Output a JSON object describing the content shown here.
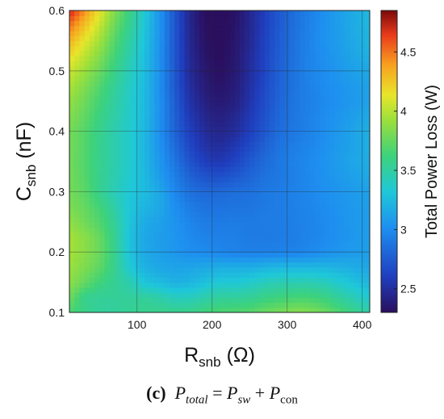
{
  "chart_data": {
    "type": "heatmap",
    "title": "",
    "xlabel": {
      "main": "R",
      "sub": "snb",
      "unit": "(Ω)"
    },
    "ylabel": {
      "main": "C",
      "sub": "snb",
      "unit": "(nF)"
    },
    "xlim": [
      10,
      410
    ],
    "ylim": [
      0.1,
      0.6
    ],
    "xticks": [
      "100",
      "200",
      "300",
      "400"
    ],
    "yticks": [
      "0.1",
      "0.2",
      "0.3",
      "0.4",
      "0.5",
      "0.6"
    ],
    "grid": true,
    "colorbar": {
      "label": "Total Power Loss (W)",
      "range": [
        2.3,
        4.85
      ],
      "ticks": [
        "2.5",
        "3",
        "3.5",
        "4",
        "4.5"
      ],
      "colormap": "jet"
    },
    "x": [
      10,
      30,
      50,
      70,
      90,
      110,
      130,
      150,
      170,
      190,
      210,
      230,
      250,
      270,
      290,
      310,
      330,
      350,
      370,
      390,
      410
    ],
    "y": [
      0.1,
      0.125,
      0.15,
      0.175,
      0.2,
      0.225,
      0.25,
      0.275,
      0.3,
      0.325,
      0.35,
      0.375,
      0.4,
      0.425,
      0.45,
      0.475,
      0.5,
      0.525,
      0.55,
      0.575,
      0.6
    ],
    "z": [
      [
        3.66,
        3.59,
        3.52,
        3.51,
        3.54,
        3.57,
        3.57,
        3.57,
        3.58,
        3.63,
        3.67,
        3.69,
        3.71,
        3.77,
        3.81,
        3.86,
        3.84,
        3.78,
        3.68,
        3.58,
        3.48
      ],
      [
        3.79,
        3.55,
        3.53,
        3.53,
        3.52,
        3.52,
        3.48,
        3.41,
        3.41,
        3.47,
        3.52,
        3.52,
        3.53,
        3.59,
        3.62,
        3.65,
        3.65,
        3.6,
        3.51,
        3.43,
        3.34
      ],
      [
        3.88,
        3.75,
        3.62,
        3.54,
        3.46,
        3.3,
        3.25,
        3.19,
        3.21,
        3.28,
        3.33,
        3.33,
        3.36,
        3.42,
        3.45,
        3.45,
        3.45,
        3.42,
        3.35,
        3.28,
        3.22
      ],
      [
        3.92,
        3.83,
        3.73,
        3.56,
        3.34,
        3.19,
        3.14,
        3.12,
        3.13,
        3.15,
        3.18,
        3.18,
        3.18,
        3.21,
        3.23,
        3.23,
        3.23,
        3.22,
        3.2,
        3.17,
        3.14
      ],
      [
        3.95,
        3.87,
        3.77,
        3.57,
        3.29,
        3.15,
        3.1,
        3.06,
        3.01,
        3.0,
        2.97,
        2.95,
        2.94,
        2.94,
        2.95,
        2.95,
        2.98,
        3.02,
        3.05,
        3.08,
        3.1
      ],
      [
        3.95,
        3.87,
        3.76,
        3.56,
        3.28,
        3.14,
        3.09,
        3.05,
        2.99,
        2.95,
        2.94,
        2.94,
        2.91,
        2.91,
        2.92,
        2.93,
        2.96,
        2.99,
        3.03,
        3.06,
        3.09
      ],
      [
        3.89,
        3.79,
        3.69,
        3.53,
        3.3,
        3.16,
        3.11,
        3.04,
        2.97,
        2.92,
        2.91,
        2.92,
        2.91,
        2.92,
        2.92,
        2.94,
        2.96,
        2.99,
        3.03,
        3.07,
        3.1
      ],
      [
        3.83,
        3.75,
        3.64,
        3.48,
        3.31,
        3.21,
        3.15,
        3.02,
        2.92,
        2.87,
        2.87,
        2.88,
        2.88,
        2.91,
        2.92,
        2.94,
        2.97,
        3.0,
        3.04,
        3.07,
        3.1
      ],
      [
        3.8,
        3.72,
        3.56,
        3.43,
        3.32,
        3.25,
        3.15,
        2.98,
        2.86,
        2.82,
        2.82,
        2.85,
        2.86,
        2.9,
        2.92,
        2.95,
        2.98,
        3.02,
        3.05,
        3.08,
        3.11
      ],
      [
        3.8,
        3.7,
        3.56,
        3.45,
        3.35,
        3.24,
        3.09,
        2.94,
        2.79,
        2.71,
        2.69,
        2.74,
        2.8,
        2.87,
        2.9,
        2.94,
        2.98,
        3.03,
        3.07,
        3.11,
        3.15
      ],
      [
        3.79,
        3.69,
        3.56,
        3.46,
        3.36,
        3.23,
        3.06,
        2.89,
        2.71,
        2.6,
        2.56,
        2.63,
        2.74,
        2.83,
        2.9,
        2.95,
        2.99,
        3.04,
        3.09,
        3.14,
        3.18
      ],
      [
        3.8,
        3.7,
        3.56,
        3.46,
        3.36,
        3.22,
        3.04,
        2.84,
        2.65,
        2.53,
        2.49,
        2.56,
        2.66,
        2.78,
        2.88,
        2.93,
        2.97,
        3.02,
        3.08,
        3.13,
        3.19
      ],
      [
        3.8,
        3.7,
        3.57,
        3.46,
        3.36,
        3.23,
        3.02,
        2.79,
        2.61,
        2.49,
        2.44,
        2.49,
        2.6,
        2.73,
        2.84,
        2.9,
        2.95,
        3.01,
        3.07,
        3.13,
        3.19
      ],
      [
        3.85,
        3.74,
        3.6,
        3.48,
        3.37,
        3.24,
        3.03,
        2.78,
        2.57,
        2.45,
        2.4,
        2.45,
        2.57,
        2.7,
        2.82,
        2.89,
        2.95,
        3.0,
        3.05,
        3.1,
        3.16
      ],
      [
        3.9,
        3.78,
        3.64,
        3.5,
        3.38,
        3.24,
        3.03,
        2.77,
        2.53,
        2.41,
        2.36,
        2.4,
        2.53,
        2.68,
        2.8,
        2.89,
        2.94,
        2.99,
        3.03,
        3.07,
        3.12
      ],
      [
        3.97,
        3.84,
        3.69,
        3.53,
        3.39,
        3.25,
        3.02,
        2.74,
        2.5,
        2.38,
        2.33,
        2.38,
        2.51,
        2.66,
        2.79,
        2.88,
        2.95,
        3.0,
        3.04,
        3.08,
        3.12
      ],
      [
        4.06,
        3.92,
        3.77,
        3.58,
        3.42,
        3.26,
        3.03,
        2.74,
        2.48,
        2.36,
        2.31,
        2.36,
        2.49,
        2.64,
        2.78,
        2.88,
        2.96,
        3.01,
        3.06,
        3.11,
        3.15
      ],
      [
        4.18,
        4.02,
        3.85,
        3.64,
        3.46,
        3.27,
        3.03,
        2.73,
        2.47,
        2.34,
        2.29,
        2.35,
        2.48,
        2.63,
        2.77,
        2.87,
        2.96,
        3.02,
        3.08,
        3.14,
        3.2
      ],
      [
        4.32,
        4.13,
        3.94,
        3.7,
        3.5,
        3.29,
        3.04,
        2.73,
        2.46,
        2.32,
        2.28,
        2.34,
        2.46,
        2.62,
        2.76,
        2.87,
        2.96,
        3.03,
        3.09,
        3.16,
        3.22
      ],
      [
        4.5,
        4.27,
        4.04,
        3.77,
        3.55,
        3.31,
        3.05,
        2.73,
        2.45,
        2.31,
        2.28,
        2.33,
        2.45,
        2.61,
        2.75,
        2.86,
        2.95,
        3.03,
        3.1,
        3.17,
        3.23
      ],
      [
        4.72,
        4.43,
        4.14,
        3.84,
        3.6,
        3.34,
        3.05,
        2.73,
        2.45,
        2.3,
        2.27,
        2.32,
        2.45,
        2.6,
        2.74,
        2.85,
        2.94,
        3.02,
        3.1,
        3.17,
        3.24
      ]
    ]
  },
  "caption": {
    "label": "(c)",
    "p": "P",
    "total_sub": "total",
    "eq": " = ",
    "sw_sub": "sw",
    "plus": " + ",
    "con_sub": "con"
  }
}
